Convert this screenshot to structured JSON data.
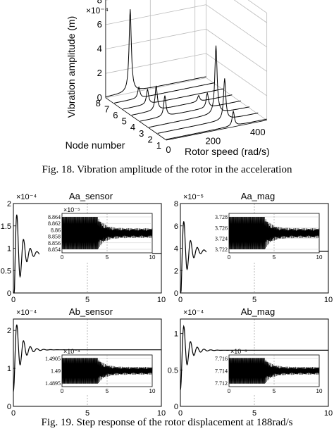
{
  "fig18": {
    "caption": "Fig. 18. Vibration amplitude of the rotor in the acceleration",
    "chart_data": {
      "type": "line",
      "title": "",
      "xlabel": "Rotor speed (rad/s)",
      "ylabel": "Node number",
      "zlabel": "Vibration amplitude (m)",
      "z_exponent": "×10⁻⁴",
      "x_ticks": [
        "0",
        "200",
        "400"
      ],
      "y_ticks": [
        "1",
        "2",
        "3",
        "4",
        "5",
        "6",
        "7",
        "8"
      ],
      "z_ticks": [
        "0",
        "2",
        "4",
        "6",
        "8"
      ],
      "xlim": [
        0,
        450
      ],
      "ylim": [
        1,
        8
      ],
      "zlim": [
        0,
        8
      ],
      "series": [
        {
          "node": 1,
          "peaks": [
            {
              "speed": 300,
              "amp": 1.2
            }
          ]
        },
        {
          "node": 2,
          "peaks": [
            {
              "speed": 300,
              "amp": 3.4
            }
          ]
        },
        {
          "node": 3,
          "peaks": [
            {
              "speed": 300,
              "amp": 5.6
            }
          ]
        },
        {
          "node": 4,
          "peaks": [
            {
              "speed": 110,
              "amp": 1.7
            },
            {
              "speed": 300,
              "amp": 1.2
            }
          ]
        },
        {
          "node": 5,
          "peaks": [
            {
              "speed": 110,
              "amp": 2.0
            },
            {
              "speed": 300,
              "amp": 0.5
            }
          ]
        },
        {
          "node": 6,
          "peaks": [
            {
              "speed": 110,
              "amp": 1.2
            }
          ]
        },
        {
          "node": 7,
          "peaks": [
            {
              "speed": 110,
              "amp": 0.9
            }
          ]
        },
        {
          "node": 8,
          "peaks": [
            {
              "speed": 110,
              "amp": 6.8
            }
          ]
        }
      ]
    }
  },
  "fig19": {
    "caption": "Fig. 19. Step response of the rotor displacement at 188rad/s",
    "chart_data": [
      {
        "type": "line",
        "title": "Aa_sensor",
        "exponent": "×10⁻⁴",
        "xlim": [
          0,
          10
        ],
        "ylim": [
          0,
          2
        ],
        "x_ticks": [
          "0",
          "5",
          "10"
        ],
        "y_ticks": [
          "0",
          "0.5",
          "1",
          "1.5",
          "2"
        ],
        "peak": 1.75,
        "steady": 0.885,
        "settle": 1.4,
        "inset": {
          "exponent": "×10⁻⁵",
          "y_ticks": [
            "8.864",
            "8.862",
            "8.86",
            "8.858",
            "8.856",
            "8.854"
          ],
          "x_ticks": [
            "5",
            "10"
          ]
        }
      },
      {
        "type": "line",
        "title": "Aa_mag",
        "exponent": "×10⁻⁵",
        "xlim": [
          0,
          10
        ],
        "ylim": [
          0,
          8
        ],
        "x_ticks": [
          "0",
          "5",
          "10"
        ],
        "y_ticks": [
          "0",
          "2",
          "4",
          "6",
          "8"
        ],
        "peak": 6.4,
        "steady": 3.725,
        "settle": 1.4,
        "inset": {
          "exponent": "",
          "y_ticks": [
            "3.728",
            "3.726",
            "3.724",
            "3.722"
          ],
          "x_ticks": [
            "5",
            "10"
          ]
        }
      },
      {
        "type": "line",
        "title": "Ab_sensor",
        "exponent": "×10⁻⁴",
        "xlim": [
          0,
          10
        ],
        "ylim": [
          0,
          2.3
        ],
        "x_ticks": [
          "0",
          "5",
          "10"
        ],
        "y_ticks": [
          "0",
          "1",
          "2"
        ],
        "peak": 2.15,
        "steady": 1.49,
        "settle": 1.6,
        "inset": {
          "exponent": "×10⁻⁴",
          "y_ticks": [
            "1.4905",
            "1.49",
            "1.4895"
          ],
          "x_ticks": [
            "5",
            "10"
          ]
        }
      },
      {
        "type": "line",
        "title": "Ab_mag",
        "exponent": "×10⁻⁴",
        "xlim": [
          0,
          10
        ],
        "ylim": [
          0,
          1.2
        ],
        "x_ticks": [
          "0",
          "5",
          "10"
        ],
        "y_ticks": [
          "0",
          "0.5",
          "1"
        ],
        "peak": 1.1,
        "steady": 0.771,
        "settle": 1.6,
        "inset": {
          "exponent": "×10⁻⁵",
          "y_ticks": [
            "7.716",
            "7.714",
            "7.712"
          ],
          "x_ticks": [
            "5",
            "10"
          ]
        }
      }
    ]
  }
}
